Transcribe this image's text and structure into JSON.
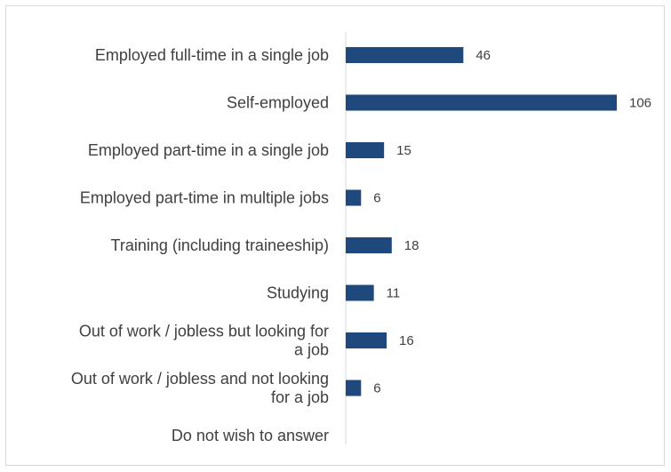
{
  "chart_data": {
    "type": "bar",
    "orientation": "horizontal",
    "categories": [
      [
        "Employed full-time in a single job"
      ],
      [
        "Self-employed"
      ],
      [
        "Employed part-time in a single job"
      ],
      [
        "Employed part-time in multiple jobs"
      ],
      [
        "Training (including traineeship)"
      ],
      [
        "Studying"
      ],
      [
        "Out of work / jobless but looking for",
        "a job"
      ],
      [
        "Out of work / jobless and not looking",
        "for a job"
      ],
      [
        "Do not wish to answer"
      ]
    ],
    "values": [
      46,
      106,
      15,
      6,
      18,
      11,
      16,
      6,
      null
    ],
    "xlim": [
      0,
      106
    ],
    "grid": false,
    "title": "",
    "xlabel": "",
    "ylabel": "",
    "colors": {
      "bar": "#1f497d",
      "axis": "#d9d9d9",
      "text": "#404040"
    }
  }
}
